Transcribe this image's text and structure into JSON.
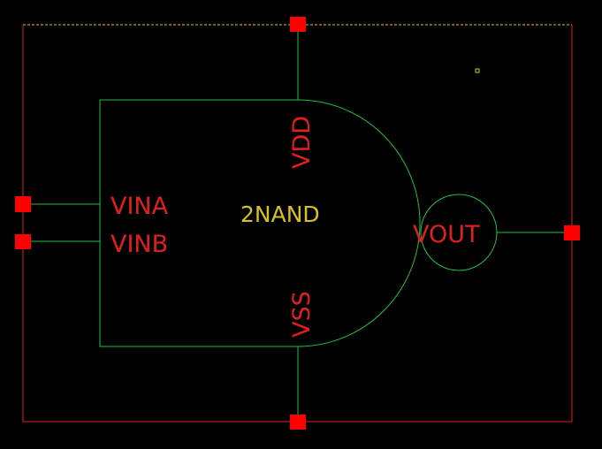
{
  "cell": {
    "name": "2NAND"
  },
  "pins": {
    "vina": "VINA",
    "vinb": "VINB",
    "vdd": "VDD",
    "vss": "VSS",
    "vout": "VOUT"
  },
  "colors": {
    "background": "#000000",
    "wire": "#20c040",
    "boundary": "#e02020",
    "pin_square": "#ff0000",
    "pin_text": "#e02020",
    "cell_text": "#d8c020",
    "selection": "#e0c020"
  }
}
